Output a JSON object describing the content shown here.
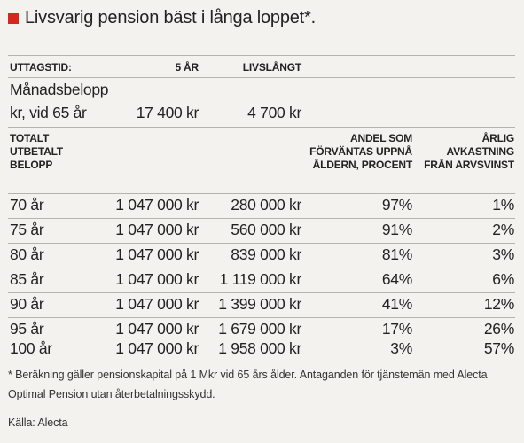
{
  "title": "Livsvarig pension bäst i långa loppet*.",
  "accent_color": "#d7261e",
  "header": {
    "uttagstid": "UTTAGSTID:",
    "col_5ar": "5 ÅR",
    "col_livslangt": "LIVSLÅNGT"
  },
  "monthly": {
    "label_line1": "Månadsbelopp",
    "label_line2": "kr, vid 65 år",
    "value_5ar": "17 400 kr",
    "value_livslangt": "4 700 kr"
  },
  "table_headers": {
    "totalt": [
      "TOTALT",
      "UTBETALT",
      "BELOPP"
    ],
    "andel": [
      "ANDEL SOM",
      "FÖRVÄNTAS UPPNÅ",
      "ÅLDERN, PROCENT"
    ],
    "arlig": [
      "ÅRLIG",
      "AVKASTNING",
      "FRÅN ARVSVINST"
    ]
  },
  "rows": [
    {
      "age": "70 år",
      "five_year": "1 047 000 kr",
      "lifelong": "280 000 kr",
      "share": "97%",
      "return": "1%"
    },
    {
      "age": "75 år",
      "five_year": "1 047 000 kr",
      "lifelong": "560 000 kr",
      "share": "91%",
      "return": "2%"
    },
    {
      "age": "80 år",
      "five_year": "1 047 000 kr",
      "lifelong": "839 000 kr",
      "share": "81%",
      "return": "3%"
    },
    {
      "age": "85 år",
      "five_year": "1 047 000 kr",
      "lifelong": "1 119 000 kr",
      "share": "64%",
      "return": "6%"
    },
    {
      "age": "90 år",
      "five_year": "1 047 000 kr",
      "lifelong": "1 399 000 kr",
      "share": "41%",
      "return": "12%"
    },
    {
      "age": "95 år",
      "five_year": "1 047 000 kr",
      "lifelong": "1 679 000 kr",
      "share": "17%",
      "return": "26%"
    },
    {
      "age": "100 år",
      "five_year": "1 047 000 kr",
      "lifelong": "1 958 000 kr",
      "share": "3%",
      "return": "57%"
    }
  ],
  "footnote": "* Beräkning gäller pensionskapital på 1 Mkr vid 65 års ålder. Antaganden för tjänstemän med Alecta Optimal Pension utan återbetalningsskydd.",
  "source": "Källa: Alecta"
}
